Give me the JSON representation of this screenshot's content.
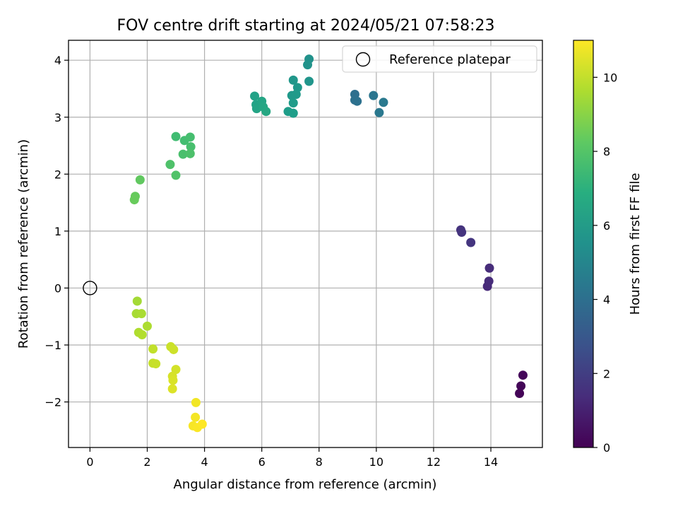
{
  "chart_data": {
    "type": "scatter",
    "title": "FOV centre drift starting at 2024/05/21 07:58:23",
    "xlabel": "Angular distance from reference (arcmin)",
    "ylabel": "Rotation from reference (arcmin)",
    "xlim": [
      -0.75,
      15.8
    ],
    "ylim": [
      -2.8,
      4.35
    ],
    "xticks": [
      0,
      2,
      4,
      6,
      8,
      10,
      12,
      14
    ],
    "yticks": [
      -2,
      -1,
      0,
      1,
      2,
      3,
      4
    ],
    "grid": true,
    "legend": {
      "placement": "top-right",
      "entries": [
        "Reference platepar"
      ]
    },
    "reference_point": {
      "label": "Reference platepar",
      "x": 0,
      "y": 0
    },
    "colorbar": {
      "label": "Hours from first FF file",
      "range": [
        0,
        11
      ],
      "ticks": [
        0,
        2,
        4,
        6,
        8,
        10
      ],
      "colormap": "viridis",
      "placement": "right"
    },
    "points": [
      {
        "x": 15.0,
        "y": -1.85,
        "t": 0.1
      },
      {
        "x": 15.05,
        "y": -1.72,
        "t": 0.15
      },
      {
        "x": 15.12,
        "y": -1.53,
        "t": 0.2
      },
      {
        "x": 13.88,
        "y": 0.03,
        "t": 1.3
      },
      {
        "x": 13.93,
        "y": 0.12,
        "t": 1.35
      },
      {
        "x": 13.95,
        "y": 0.35,
        "t": 1.4
      },
      {
        "x": 12.95,
        "y": 1.02,
        "t": 1.6
      },
      {
        "x": 12.98,
        "y": 0.98,
        "t": 1.65
      },
      {
        "x": 13.3,
        "y": 0.8,
        "t": 1.7
      },
      {
        "x": 9.25,
        "y": 3.4,
        "t": 4.0
      },
      {
        "x": 9.25,
        "y": 3.3,
        "t": 4.05
      },
      {
        "x": 9.33,
        "y": 3.28,
        "t": 4.1
      },
      {
        "x": 9.9,
        "y": 3.38,
        "t": 4.3
      },
      {
        "x": 10.1,
        "y": 3.08,
        "t": 4.4
      },
      {
        "x": 10.25,
        "y": 3.26,
        "t": 4.45
      },
      {
        "x": 7.65,
        "y": 4.02,
        "t": 5.6
      },
      {
        "x": 7.6,
        "y": 3.92,
        "t": 5.65
      },
      {
        "x": 7.65,
        "y": 3.63,
        "t": 5.7
      },
      {
        "x": 7.1,
        "y": 3.65,
        "t": 5.8
      },
      {
        "x": 7.25,
        "y": 3.52,
        "t": 5.85
      },
      {
        "x": 7.05,
        "y": 3.38,
        "t": 5.9
      },
      {
        "x": 7.2,
        "y": 3.4,
        "t": 5.95
      },
      {
        "x": 7.1,
        "y": 3.25,
        "t": 6.0
      },
      {
        "x": 6.92,
        "y": 3.1,
        "t": 6.05
      },
      {
        "x": 7.1,
        "y": 3.07,
        "t": 6.1
      },
      {
        "x": 5.75,
        "y": 3.37,
        "t": 6.3
      },
      {
        "x": 5.8,
        "y": 3.22,
        "t": 6.35
      },
      {
        "x": 5.82,
        "y": 3.15,
        "t": 6.4
      },
      {
        "x": 6.0,
        "y": 3.28,
        "t": 6.45
      },
      {
        "x": 6.05,
        "y": 3.18,
        "t": 6.5
      },
      {
        "x": 6.15,
        "y": 3.1,
        "t": 6.55
      },
      {
        "x": 3.0,
        "y": 2.66,
        "t": 7.6
      },
      {
        "x": 3.3,
        "y": 2.59,
        "t": 7.65
      },
      {
        "x": 3.5,
        "y": 2.65,
        "t": 7.7
      },
      {
        "x": 3.52,
        "y": 2.48,
        "t": 7.75
      },
      {
        "x": 3.25,
        "y": 2.35,
        "t": 7.8
      },
      {
        "x": 3.5,
        "y": 2.36,
        "t": 7.85
      },
      {
        "x": 2.8,
        "y": 2.17,
        "t": 7.9
      },
      {
        "x": 3.0,
        "y": 1.98,
        "t": 7.95
      },
      {
        "x": 1.75,
        "y": 1.9,
        "t": 8.3
      },
      {
        "x": 1.58,
        "y": 1.61,
        "t": 8.4
      },
      {
        "x": 1.55,
        "y": 1.55,
        "t": 8.45
      },
      {
        "x": 1.65,
        "y": -0.23,
        "t": 9.5
      },
      {
        "x": 1.62,
        "y": -0.45,
        "t": 9.55
      },
      {
        "x": 1.8,
        "y": -0.45,
        "t": 9.6
      },
      {
        "x": 2.0,
        "y": -0.67,
        "t": 9.65
      },
      {
        "x": 1.7,
        "y": -0.78,
        "t": 9.7
      },
      {
        "x": 1.82,
        "y": -0.82,
        "t": 9.75
      },
      {
        "x": 2.2,
        "y": -1.07,
        "t": 10.0
      },
      {
        "x": 2.2,
        "y": -1.32,
        "t": 10.05
      },
      {
        "x": 2.3,
        "y": -1.33,
        "t": 10.1
      },
      {
        "x": 2.82,
        "y": -1.03,
        "t": 10.15
      },
      {
        "x": 2.92,
        "y": -1.08,
        "t": 10.2
      },
      {
        "x": 3.0,
        "y": -1.43,
        "t": 10.3
      },
      {
        "x": 2.88,
        "y": -1.55,
        "t": 10.35
      },
      {
        "x": 2.9,
        "y": -1.62,
        "t": 10.4
      },
      {
        "x": 2.88,
        "y": -1.77,
        "t": 10.45
      },
      {
        "x": 3.7,
        "y": -2.01,
        "t": 10.8
      },
      {
        "x": 3.68,
        "y": -2.27,
        "t": 10.85
      },
      {
        "x": 3.6,
        "y": -2.42,
        "t": 10.9
      },
      {
        "x": 3.75,
        "y": -2.45,
        "t": 10.95
      },
      {
        "x": 3.92,
        "y": -2.39,
        "t": 11.0
      }
    ]
  }
}
